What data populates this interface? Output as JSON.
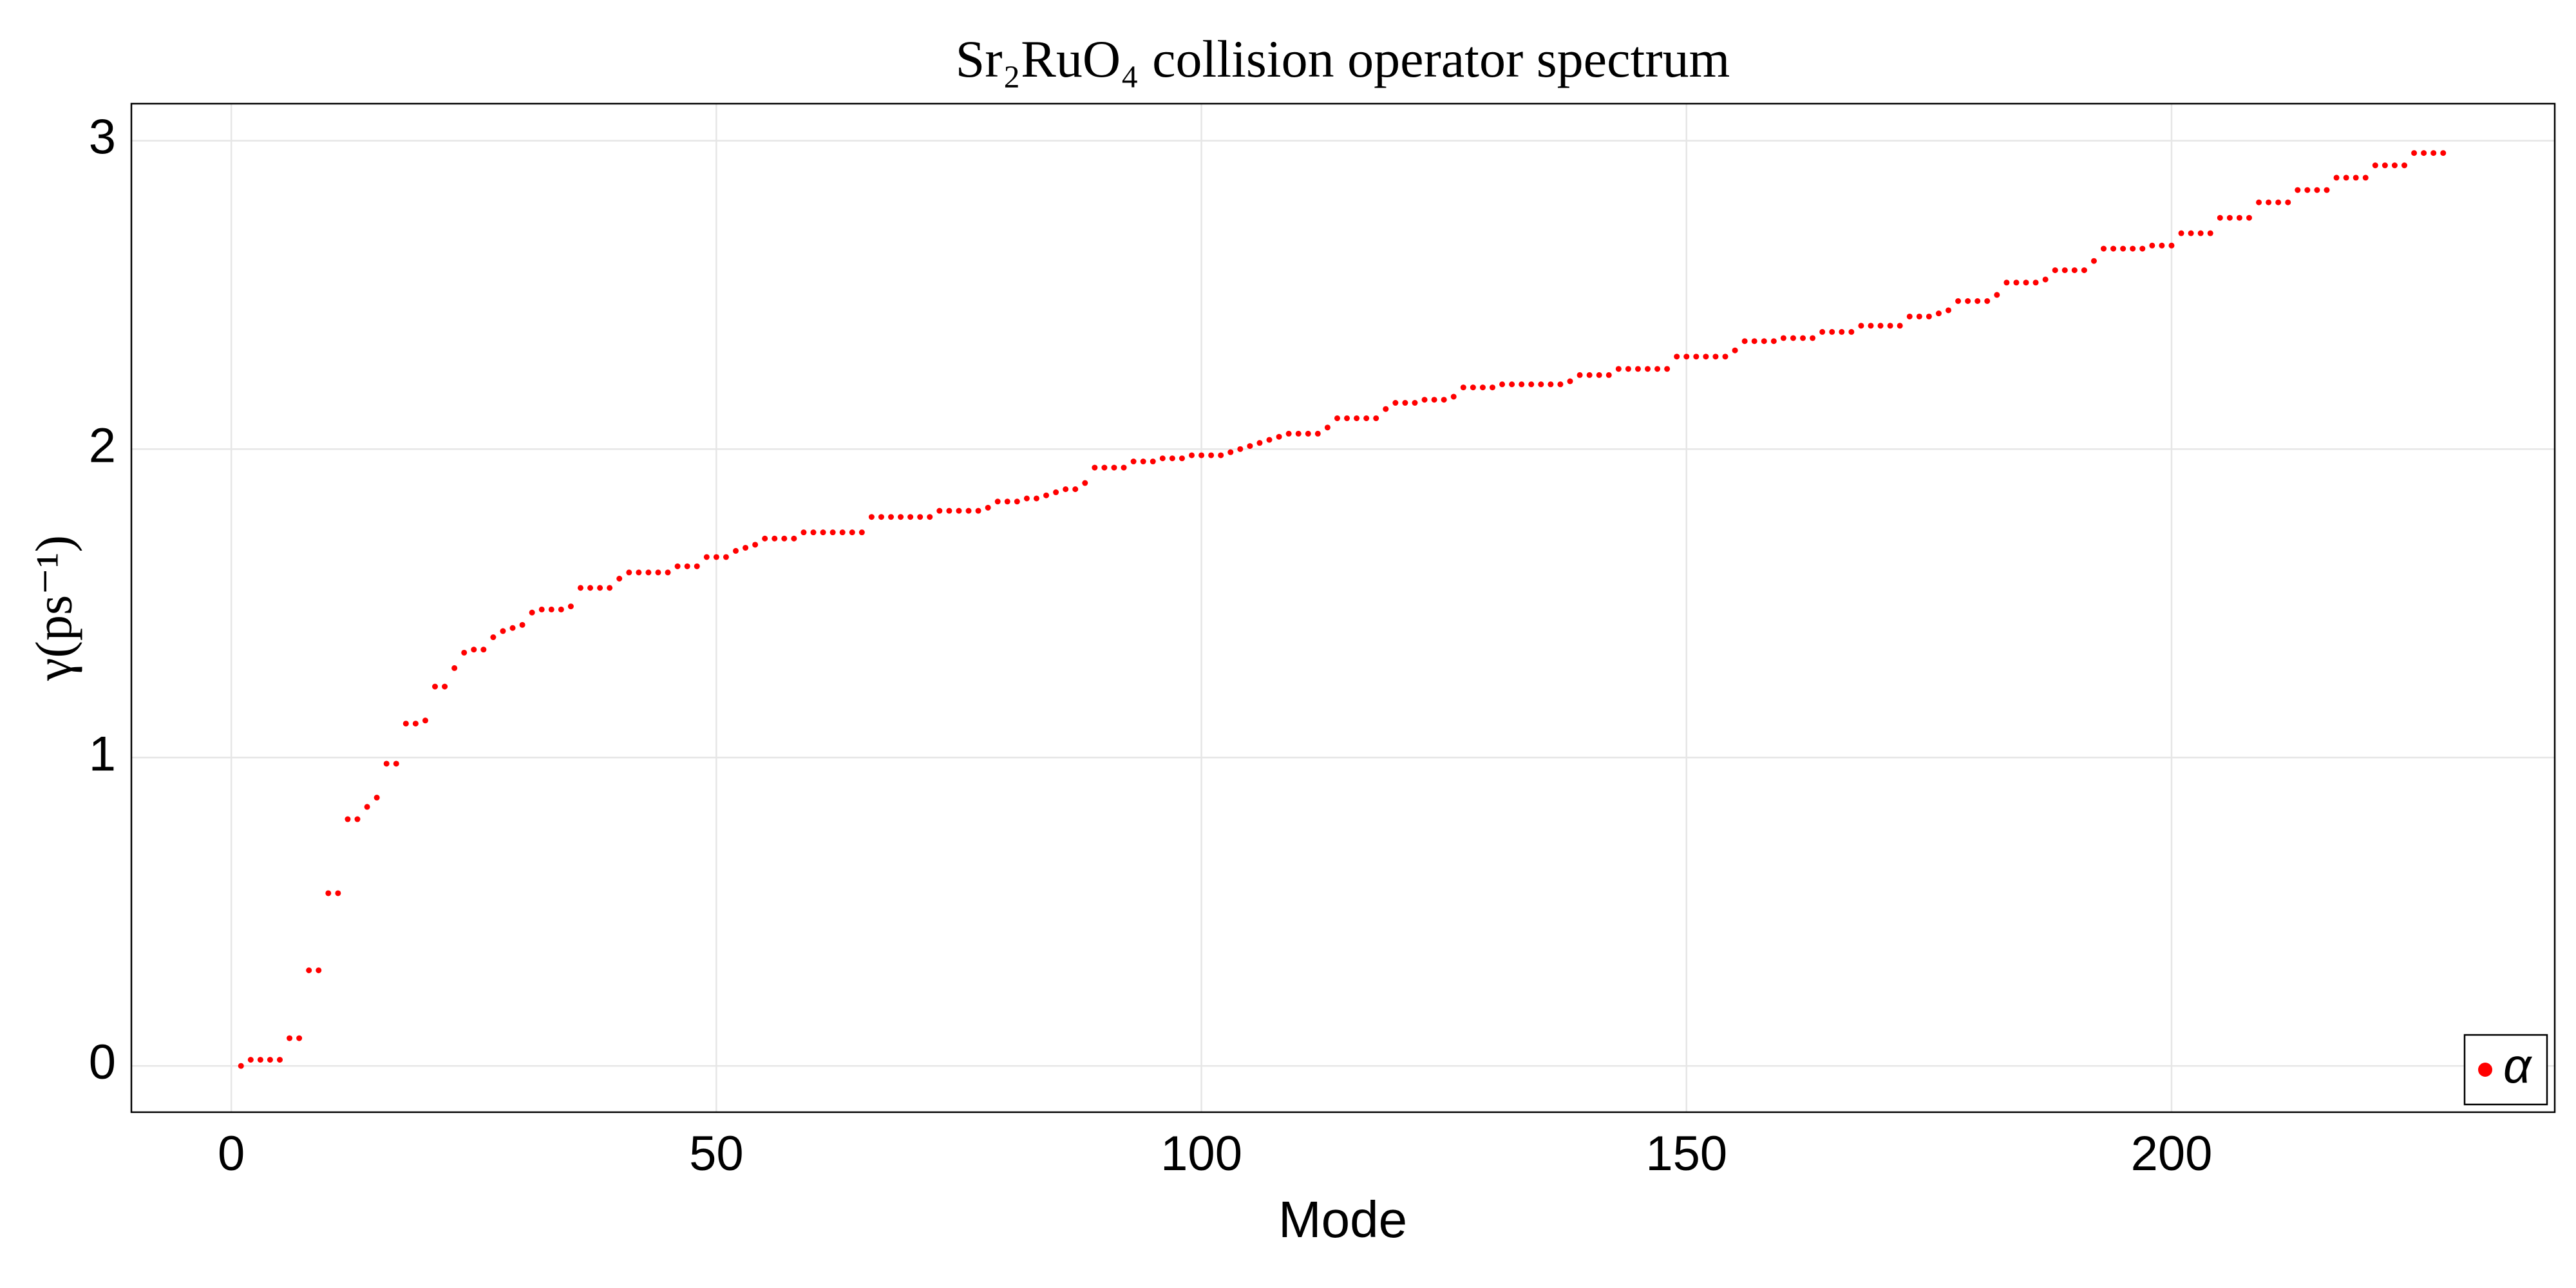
{
  "chart_data": {
    "type": "scatter",
    "title": "Sr₂RuO₄ collision operator spectrum",
    "x_label": "Mode",
    "y_label": "γ(ps⁻¹)",
    "xlim": [
      -10.3,
      239.5
    ],
    "ylim": [
      -0.15,
      3.12
    ],
    "xticks": [
      0,
      50,
      100,
      150,
      200
    ],
    "yticks": [
      0,
      1,
      2,
      3
    ],
    "grid": true,
    "legend": "bottom-right",
    "series": [
      {
        "name": "α",
        "color": "#ff0000",
        "x": [
          1,
          2,
          3,
          4,
          5,
          6,
          7,
          8,
          9,
          10,
          11,
          12,
          13,
          14,
          15,
          16,
          17,
          18,
          19,
          20,
          21,
          22,
          23,
          24,
          25,
          26,
          27,
          28,
          29,
          30,
          31,
          32,
          33,
          34,
          35,
          36,
          37,
          38,
          39,
          40,
          41,
          42,
          43,
          44,
          45,
          46,
          47,
          48,
          49,
          50,
          51,
          52,
          53,
          54,
          55,
          56,
          57,
          58,
          59,
          60,
          61,
          62,
          63,
          64,
          65,
          66,
          67,
          68,
          69,
          70,
          71,
          72,
          73,
          74,
          75,
          76,
          77,
          78,
          79,
          80,
          81,
          82,
          83,
          84,
          85,
          86,
          87,
          88,
          89,
          90,
          91,
          92,
          93,
          94,
          95,
          96,
          97,
          98,
          99,
          100,
          101,
          102,
          103,
          104,
          105,
          106,
          107,
          108,
          109,
          110,
          111,
          112,
          113,
          114,
          115,
          116,
          117,
          118,
          119,
          120,
          121,
          122,
          123,
          124,
          125,
          126,
          127,
          128,
          129,
          130,
          131,
          132,
          133,
          134,
          135,
          136,
          137,
          138,
          139,
          140,
          141,
          142,
          143,
          144,
          145,
          146,
          147,
          148,
          149,
          150,
          151,
          152,
          153,
          154,
          155,
          156,
          157,
          158,
          159,
          160,
          161,
          162,
          163,
          164,
          165,
          166,
          167,
          168,
          169,
          170,
          171,
          172,
          173,
          174,
          175,
          176,
          177,
          178,
          179,
          180,
          181,
          182,
          183,
          184,
          185,
          186,
          187,
          188,
          189,
          190,
          191,
          192,
          193,
          194,
          195,
          196,
          197,
          198,
          199,
          200,
          201,
          202,
          203,
          204,
          205,
          206,
          207,
          208,
          209,
          210,
          211,
          212,
          213,
          214,
          215,
          216,
          217,
          218,
          219,
          220,
          221,
          222,
          223,
          224,
          225,
          226,
          227,
          228
        ],
        "values": [
          0,
          0.02,
          0.02,
          0.02,
          0.02,
          0.09,
          0.09,
          0.31,
          0.31,
          0.56,
          0.56,
          0.8,
          0.8,
          0.84,
          0.87,
          0.98,
          0.98,
          1.11,
          1.11,
          1.12,
          1.23,
          1.23,
          1.29,
          1.34,
          1.35,
          1.35,
          1.39,
          1.41,
          1.42,
          1.43,
          1.47,
          1.48,
          1.48,
          1.48,
          1.49,
          1.55,
          1.55,
          1.55,
          1.55,
          1.58,
          1.6,
          1.6,
          1.6,
          1.6,
          1.6,
          1.62,
          1.62,
          1.62,
          1.65,
          1.65,
          1.65,
          1.67,
          1.68,
          1.69,
          1.71,
          1.71,
          1.71,
          1.71,
          1.73,
          1.73,
          1.73,
          1.73,
          1.73,
          1.73,
          1.73,
          1.78,
          1.78,
          1.78,
          1.78,
          1.78,
          1.78,
          1.78,
          1.8,
          1.8,
          1.8,
          1.8,
          1.8,
          1.81,
          1.83,
          1.83,
          1.83,
          1.84,
          1.84,
          1.85,
          1.86,
          1.87,
          1.87,
          1.89,
          1.94,
          1.94,
          1.94,
          1.94,
          1.96,
          1.96,
          1.96,
          1.97,
          1.97,
          1.97,
          1.98,
          1.98,
          1.98,
          1.98,
          1.99,
          2.0,
          2.01,
          2.02,
          2.03,
          2.04,
          2.05,
          2.05,
          2.05,
          2.05,
          2.07,
          2.1,
          2.1,
          2.1,
          2.1,
          2.1,
          2.13,
          2.15,
          2.15,
          2.15,
          2.16,
          2.16,
          2.16,
          2.17,
          2.2,
          2.2,
          2.2,
          2.2,
          2.21,
          2.21,
          2.21,
          2.21,
          2.21,
          2.21,
          2.21,
          2.22,
          2.24,
          2.24,
          2.24,
          2.24,
          2.26,
          2.26,
          2.26,
          2.26,
          2.26,
          2.26,
          2.3,
          2.3,
          2.3,
          2.3,
          2.3,
          2.3,
          2.32,
          2.35,
          2.35,
          2.35,
          2.35,
          2.36,
          2.36,
          2.36,
          2.36,
          2.38,
          2.38,
          2.38,
          2.38,
          2.4,
          2.4,
          2.4,
          2.4,
          2.4,
          2.43,
          2.43,
          2.43,
          2.44,
          2.45,
          2.48,
          2.48,
          2.48,
          2.48,
          2.5,
          2.54,
          2.54,
          2.54,
          2.54,
          2.55,
          2.58,
          2.58,
          2.58,
          2.58,
          2.61,
          2.65,
          2.65,
          2.65,
          2.65,
          2.65,
          2.66,
          2.66,
          2.66,
          2.7,
          2.7,
          2.7,
          2.7,
          2.75,
          2.75,
          2.75,
          2.75,
          2.8,
          2.8,
          2.8,
          2.8,
          2.84,
          2.84,
          2.84,
          2.84,
          2.88,
          2.88,
          2.88,
          2.88,
          2.92,
          2.92,
          2.92,
          2.92,
          2.96,
          2.96,
          2.96,
          2.96
        ]
      }
    ]
  }
}
